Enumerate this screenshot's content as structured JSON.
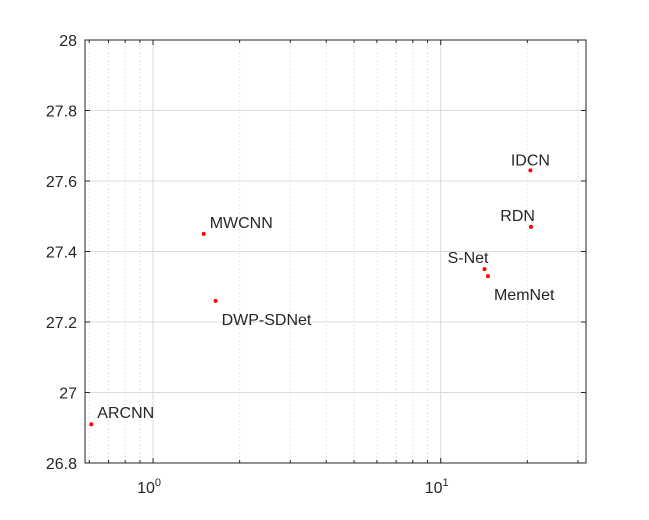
{
  "chart_data": {
    "type": "scatter",
    "title": "",
    "xlabel": "",
    "ylabel": "",
    "xscale": "log",
    "xlim": [
      0.58,
      32
    ],
    "ylim": [
      26.8,
      28.0
    ],
    "grid": true,
    "point_color": "#ff0000",
    "x_ticks": [
      {
        "base": "10",
        "exp": "0",
        "value": 1
      },
      {
        "base": "10",
        "exp": "1",
        "value": 10
      }
    ],
    "y_ticks": [
      "26.8",
      "27",
      "27.2",
      "27.4",
      "27.6",
      "27.8",
      "28"
    ],
    "points": [
      {
        "label": "ARCNN",
        "x": 0.61,
        "y": 26.91,
        "label_pos": "above-right"
      },
      {
        "label": "MWCNN",
        "x": 1.5,
        "y": 27.45,
        "label_pos": "above-right"
      },
      {
        "label": "DWP-SDNet",
        "x": 1.65,
        "y": 27.26,
        "label_pos": "below-right"
      },
      {
        "label": "S-Net",
        "x": 14.2,
        "y": 27.35,
        "label_pos": "above-left"
      },
      {
        "label": "MemNet",
        "x": 14.6,
        "y": 27.33,
        "label_pos": "below-right"
      },
      {
        "label": "RDN",
        "x": 20.6,
        "y": 27.47,
        "label_pos": "above-left"
      },
      {
        "label": "IDCN",
        "x": 20.5,
        "y": 27.63,
        "label_pos": "above"
      }
    ]
  }
}
